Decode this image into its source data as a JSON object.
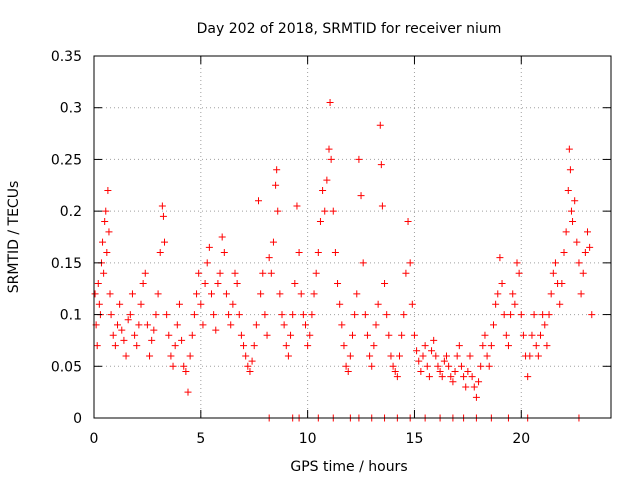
{
  "chart_data": {
    "type": "scatter",
    "title": "Day 202 of 2018, SRMTID for receiver nium",
    "xlabel": "GPS time / hours",
    "ylabel": "SRMTID / TECUs",
    "xlim": [
      0,
      24.2
    ],
    "ylim": [
      0,
      0.35
    ],
    "xticks": [
      0,
      5,
      10,
      15,
      20
    ],
    "xtick_labels": [
      "0",
      "5",
      "10",
      "15",
      "20"
    ],
    "yticks": [
      0,
      0.05,
      0.1,
      0.15,
      0.2,
      0.25,
      0.3,
      0.35
    ],
    "ytick_labels": [
      "0",
      "0.05",
      "0.1",
      "0.15",
      "0.2",
      "0.25",
      "0.3",
      "0.35"
    ],
    "grid": true,
    "marker": "plus",
    "color": "#ff0000",
    "series": [
      {
        "name": "SRMTID",
        "points": [
          [
            0.05,
            0.12
          ],
          [
            0.1,
            0.09
          ],
          [
            0.15,
            0.07
          ],
          [
            0.2,
            0.13
          ],
          [
            0.25,
            0.11
          ],
          [
            0.3,
            0.1
          ],
          [
            0.35,
            0.15
          ],
          [
            0.4,
            0.17
          ],
          [
            0.45,
            0.14
          ],
          [
            0.5,
            0.19
          ],
          [
            0.55,
            0.2
          ],
          [
            0.6,
            0.16
          ],
          [
            0.65,
            0.22
          ],
          [
            0.7,
            0.18
          ],
          [
            0.75,
            0.12
          ],
          [
            0.8,
            0.1
          ],
          [
            0.9,
            0.08
          ],
          [
            1.0,
            0.07
          ],
          [
            1.1,
            0.09
          ],
          [
            1.2,
            0.11
          ],
          [
            1.3,
            0.085
          ],
          [
            1.4,
            0.075
          ],
          [
            1.5,
            0.06
          ],
          [
            1.6,
            0.095
          ],
          [
            1.7,
            0.1
          ],
          [
            1.8,
            0.12
          ],
          [
            1.9,
            0.08
          ],
          [
            2.0,
            0.07
          ],
          [
            2.1,
            0.09
          ],
          [
            2.2,
            0.11
          ],
          [
            2.3,
            0.13
          ],
          [
            2.4,
            0.14
          ],
          [
            2.5,
            0.09
          ],
          [
            2.6,
            0.06
          ],
          [
            2.7,
            0.075
          ],
          [
            2.8,
            0.085
          ],
          [
            2.9,
            0.1
          ],
          [
            3.0,
            0.12
          ],
          [
            3.1,
            0.16
          ],
          [
            3.2,
            0.205
          ],
          [
            3.25,
            0.195
          ],
          [
            3.3,
            0.17
          ],
          [
            3.4,
            0.1
          ],
          [
            3.5,
            0.08
          ],
          [
            3.6,
            0.06
          ],
          [
            3.7,
            0.05
          ],
          [
            3.8,
            0.07
          ],
          [
            3.9,
            0.09
          ],
          [
            4.0,
            0.11
          ],
          [
            4.1,
            0.075
          ],
          [
            4.2,
            0.05
          ],
          [
            4.3,
            0.045
          ],
          [
            4.4,
            0.025
          ],
          [
            4.5,
            0.06
          ],
          [
            4.6,
            0.08
          ],
          [
            4.7,
            0.1
          ],
          [
            4.8,
            0.12
          ],
          [
            4.9,
            0.14
          ],
          [
            5.0,
            0.11
          ],
          [
            5.1,
            0.09
          ],
          [
            5.2,
            0.13
          ],
          [
            5.3,
            0.15
          ],
          [
            5.4,
            0.165
          ],
          [
            5.5,
            0.12
          ],
          [
            5.6,
            0.1
          ],
          [
            5.7,
            0.085
          ],
          [
            5.8,
            0.13
          ],
          [
            5.9,
            0.14
          ],
          [
            6.0,
            0.175
          ],
          [
            6.1,
            0.16
          ],
          [
            6.2,
            0.12
          ],
          [
            6.3,
            0.1
          ],
          [
            6.4,
            0.09
          ],
          [
            6.5,
            0.11
          ],
          [
            6.6,
            0.14
          ],
          [
            6.7,
            0.13
          ],
          [
            6.8,
            0.1
          ],
          [
            6.9,
            0.08
          ],
          [
            7.0,
            0.07
          ],
          [
            7.1,
            0.06
          ],
          [
            7.2,
            0.05
          ],
          [
            7.3,
            0.045
          ],
          [
            7.4,
            0.055
          ],
          [
            7.5,
            0.07
          ],
          [
            7.6,
            0.09
          ],
          [
            7.7,
            0.21
          ],
          [
            7.8,
            0.12
          ],
          [
            7.9,
            0.14
          ],
          [
            8.0,
            0.1
          ],
          [
            8.1,
            0.08
          ],
          [
            8.2,
            0.155
          ],
          [
            8.3,
            0.14
          ],
          [
            8.4,
            0.17
          ],
          [
            8.5,
            0.225
          ],
          [
            8.55,
            0.24
          ],
          [
            8.6,
            0.2
          ],
          [
            8.7,
            0.12
          ],
          [
            8.8,
            0.1
          ],
          [
            8.9,
            0.09
          ],
          [
            9.0,
            0.07
          ],
          [
            9.1,
            0.06
          ],
          [
            9.2,
            0.08
          ],
          [
            9.3,
            0.1
          ],
          [
            9.4,
            0.13
          ],
          [
            9.5,
            0.205
          ],
          [
            9.6,
            0.16
          ],
          [
            9.7,
            0.12
          ],
          [
            9.8,
            0.1
          ],
          [
            9.9,
            0.09
          ],
          [
            10.0,
            0.07
          ],
          [
            10.1,
            0.08
          ],
          [
            10.2,
            0.1
          ],
          [
            10.3,
            0.12
          ],
          [
            10.4,
            0.14
          ],
          [
            10.5,
            0.16
          ],
          [
            10.6,
            0.19
          ],
          [
            10.7,
            0.22
          ],
          [
            10.8,
            0.2
          ],
          [
            10.9,
            0.23
          ],
          [
            11.0,
            0.26
          ],
          [
            11.05,
            0.305
          ],
          [
            11.1,
            0.25
          ],
          [
            11.2,
            0.2
          ],
          [
            11.3,
            0.16
          ],
          [
            11.4,
            0.13
          ],
          [
            11.5,
            0.11
          ],
          [
            11.6,
            0.09
          ],
          [
            11.7,
            0.07
          ],
          [
            11.8,
            0.05
          ],
          [
            11.9,
            0.045
          ],
          [
            12.0,
            0.06
          ],
          [
            12.1,
            0.08
          ],
          [
            12.2,
            0.1
          ],
          [
            12.3,
            0.12
          ],
          [
            12.4,
            0.25
          ],
          [
            12.5,
            0.215
          ],
          [
            12.6,
            0.15
          ],
          [
            12.7,
            0.1
          ],
          [
            12.8,
            0.08
          ],
          [
            12.9,
            0.06
          ],
          [
            13.0,
            0.05
          ],
          [
            13.1,
            0.07
          ],
          [
            13.2,
            0.09
          ],
          [
            13.3,
            0.11
          ],
          [
            13.4,
            0.283
          ],
          [
            13.45,
            0.245
          ],
          [
            13.5,
            0.205
          ],
          [
            13.6,
            0.13
          ],
          [
            13.7,
            0.1
          ],
          [
            13.8,
            0.08
          ],
          [
            13.9,
            0.06
          ],
          [
            14.0,
            0.05
          ],
          [
            14.1,
            0.045
          ],
          [
            14.2,
            0.04
          ],
          [
            14.3,
            0.06
          ],
          [
            14.4,
            0.08
          ],
          [
            14.5,
            0.1
          ],
          [
            14.6,
            0.14
          ],
          [
            14.7,
            0.19
          ],
          [
            14.8,
            0.15
          ],
          [
            14.9,
            0.11
          ],
          [
            15.0,
            0.08
          ],
          [
            15.1,
            0.065
          ],
          [
            15.2,
            0.055
          ],
          [
            15.3,
            0.045
          ],
          [
            15.4,
            0.06
          ],
          [
            15.5,
            0.07
          ],
          [
            15.6,
            0.05
          ],
          [
            15.7,
            0.04
          ],
          [
            15.8,
            0.065
          ],
          [
            15.9,
            0.075
          ],
          [
            16.0,
            0.06
          ],
          [
            16.1,
            0.05
          ],
          [
            16.2,
            0.045
          ],
          [
            16.3,
            0.04
          ],
          [
            16.4,
            0.055
          ],
          [
            16.5,
            0.06
          ],
          [
            16.6,
            0.05
          ],
          [
            16.7,
            0.04
          ],
          [
            16.8,
            0.035
          ],
          [
            16.9,
            0.045
          ],
          [
            17.0,
            0.06
          ],
          [
            17.1,
            0.07
          ],
          [
            17.2,
            0.05
          ],
          [
            17.3,
            0.04
          ],
          [
            17.4,
            0.03
          ],
          [
            17.5,
            0.045
          ],
          [
            17.6,
            0.06
          ],
          [
            17.7,
            0.04
          ],
          [
            17.8,
            0.03
          ],
          [
            17.9,
            0.02
          ],
          [
            18.0,
            0.035
          ],
          [
            18.1,
            0.05
          ],
          [
            18.2,
            0.07
          ],
          [
            18.3,
            0.08
          ],
          [
            18.4,
            0.06
          ],
          [
            18.5,
            0.05
          ],
          [
            18.6,
            0.07
          ],
          [
            18.7,
            0.09
          ],
          [
            18.8,
            0.11
          ],
          [
            18.9,
            0.12
          ],
          [
            19.0,
            0.155
          ],
          [
            19.1,
            0.13
          ],
          [
            19.2,
            0.1
          ],
          [
            19.3,
            0.08
          ],
          [
            19.4,
            0.07
          ],
          [
            19.5,
            0.1
          ],
          [
            19.6,
            0.12
          ],
          [
            19.7,
            0.11
          ],
          [
            19.8,
            0.15
          ],
          [
            19.9,
            0.14
          ],
          [
            20.0,
            0.1
          ],
          [
            20.1,
            0.08
          ],
          [
            20.2,
            0.06
          ],
          [
            20.3,
            0.04
          ],
          [
            20.4,
            0.06
          ],
          [
            20.5,
            0.08
          ],
          [
            20.6,
            0.1
          ],
          [
            20.7,
            0.07
          ],
          [
            20.8,
            0.06
          ],
          [
            20.9,
            0.08
          ],
          [
            21.0,
            0.1
          ],
          [
            21.1,
            0.09
          ],
          [
            21.2,
            0.07
          ],
          [
            21.3,
            0.1
          ],
          [
            21.4,
            0.12
          ],
          [
            21.5,
            0.14
          ],
          [
            21.6,
            0.15
          ],
          [
            21.7,
            0.13
          ],
          [
            21.8,
            0.11
          ],
          [
            21.9,
            0.13
          ],
          [
            22.0,
            0.16
          ],
          [
            22.1,
            0.18
          ],
          [
            22.2,
            0.22
          ],
          [
            22.25,
            0.26
          ],
          [
            22.3,
            0.24
          ],
          [
            22.35,
            0.2
          ],
          [
            22.4,
            0.19
          ],
          [
            22.5,
            0.21
          ],
          [
            22.6,
            0.17
          ],
          [
            22.7,
            0.15
          ],
          [
            22.8,
            0.12
          ],
          [
            22.9,
            0.14
          ],
          [
            23.0,
            0.16
          ],
          [
            23.1,
            0.18
          ],
          [
            23.2,
            0.165
          ],
          [
            23.3,
            0.1
          ],
          [
            8.2,
            0.0
          ],
          [
            9.3,
            0.0
          ],
          [
            9.6,
            0.0
          ],
          [
            10.5,
            0.0
          ],
          [
            11.2,
            0.0
          ],
          [
            12.0,
            0.0
          ],
          [
            12.4,
            0.0
          ],
          [
            13.0,
            0.0
          ],
          [
            13.6,
            0.0
          ],
          [
            14.2,
            0.0
          ],
          [
            14.8,
            0.0
          ],
          [
            15.5,
            0.0
          ],
          [
            16.2,
            0.0
          ],
          [
            16.8,
            0.0
          ],
          [
            17.3,
            0.0
          ],
          [
            17.9,
            0.0
          ],
          [
            18.6,
            0.0
          ],
          [
            19.4,
            0.0
          ],
          [
            20.3,
            0.0
          ],
          [
            22.7,
            0.0
          ]
        ]
      }
    ]
  }
}
